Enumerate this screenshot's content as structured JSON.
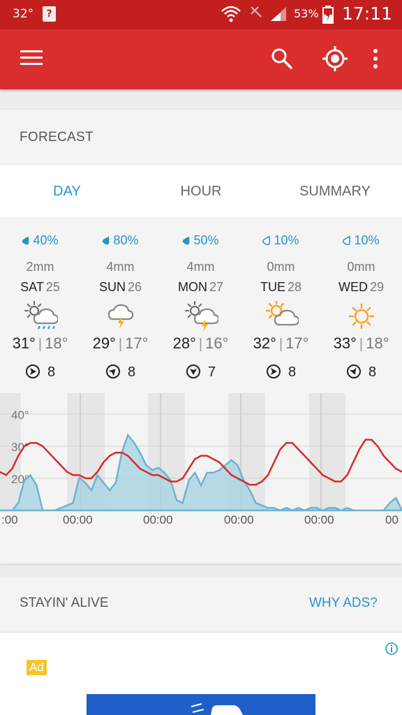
{
  "status_bar": {
    "temperature": "32°",
    "battery": "53%",
    "time": "17:11"
  },
  "app_bar": {
    "menu_icon": "hamburger-menu-icon",
    "search_icon": "search-icon",
    "location_icon": "gps-location-icon",
    "more_icon": "more-vert-icon"
  },
  "forecast": {
    "title": "FORECAST",
    "tabs": [
      "DAY",
      "HOUR",
      "SUMMARY"
    ],
    "active_tab": "DAY",
    "days": [
      {
        "precip": "40%",
        "amount": "2mm",
        "day": "SAT",
        "date": "25",
        "icon": "sun-cloud-rain-icon",
        "high": "31°",
        "low": "18°",
        "wind": "8",
        "wind_dir_deg": 90,
        "drop": "filled"
      },
      {
        "precip": "80%",
        "amount": "4mm",
        "day": "SUN",
        "date": "26",
        "icon": "cloud-lightning-icon",
        "high": "29°",
        "low": "17°",
        "wind": "8",
        "wind_dir_deg": 45,
        "drop": "filled"
      },
      {
        "precip": "50%",
        "amount": "4mm",
        "day": "MON",
        "date": "27",
        "icon": "sun-cloud-lightning-icon",
        "high": "28°",
        "low": "16°",
        "wind": "7",
        "wind_dir_deg": 180,
        "drop": "filled"
      },
      {
        "precip": "10%",
        "amount": "0mm",
        "day": "TUE",
        "date": "28",
        "icon": "sun-cloud-icon",
        "high": "32°",
        "low": "17°",
        "wind": "8",
        "wind_dir_deg": 90,
        "drop": "outline"
      },
      {
        "precip": "10%",
        "amount": "0mm",
        "day": "WED",
        "date": "29",
        "icon": "sun-icon",
        "high": "33°",
        "low": "18°",
        "wind": "8",
        "wind_dir_deg": 160,
        "drop": "outline"
      }
    ]
  },
  "chart_data": {
    "type": "line",
    "y_ticks": [
      "40°",
      "30°",
      "20°"
    ],
    "x_ticks": [
      ":00",
      "00:00",
      "00:00",
      "00:00",
      "00:00",
      "00"
    ],
    "series": [
      {
        "color": "#d62a2a",
        "values": [
          22,
          21,
          23,
          27,
          30,
          31,
          31,
          30,
          28,
          26,
          24,
          22,
          21,
          21,
          20,
          20,
          22,
          25,
          27,
          28,
          28,
          27,
          25,
          23,
          22,
          21,
          21,
          20,
          19,
          19,
          20,
          23,
          26,
          27,
          27,
          26,
          25,
          23,
          21,
          20,
          19,
          18,
          18,
          19,
          21,
          25,
          29,
          31,
          31,
          29,
          27,
          25,
          23,
          21,
          20,
          19,
          19,
          21,
          25,
          29,
          32,
          32,
          30,
          27,
          25,
          23,
          22
        ]
      },
      {
        "color": "#6fb3cf",
        "values": [
          0,
          0,
          0,
          3,
          12,
          14,
          10,
          0,
          0,
          0,
          1,
          2,
          3,
          13,
          11,
          8,
          14,
          11,
          8,
          11,
          23,
          30,
          27,
          23,
          18,
          16,
          17,
          15,
          12,
          4,
          3,
          12,
          15,
          10,
          15,
          15,
          16,
          18,
          20,
          18,
          12,
          8,
          3,
          2,
          1,
          1,
          0,
          1,
          0,
          1,
          0,
          1,
          1,
          0,
          1,
          1,
          0,
          1,
          0,
          0,
          0,
          0,
          0,
          0,
          3,
          5,
          0
        ]
      }
    ]
  },
  "ads_section": {
    "title": "STAYIN' ALIVE",
    "why_ads": "WHY ADS?",
    "ad_badge": "Ad"
  }
}
